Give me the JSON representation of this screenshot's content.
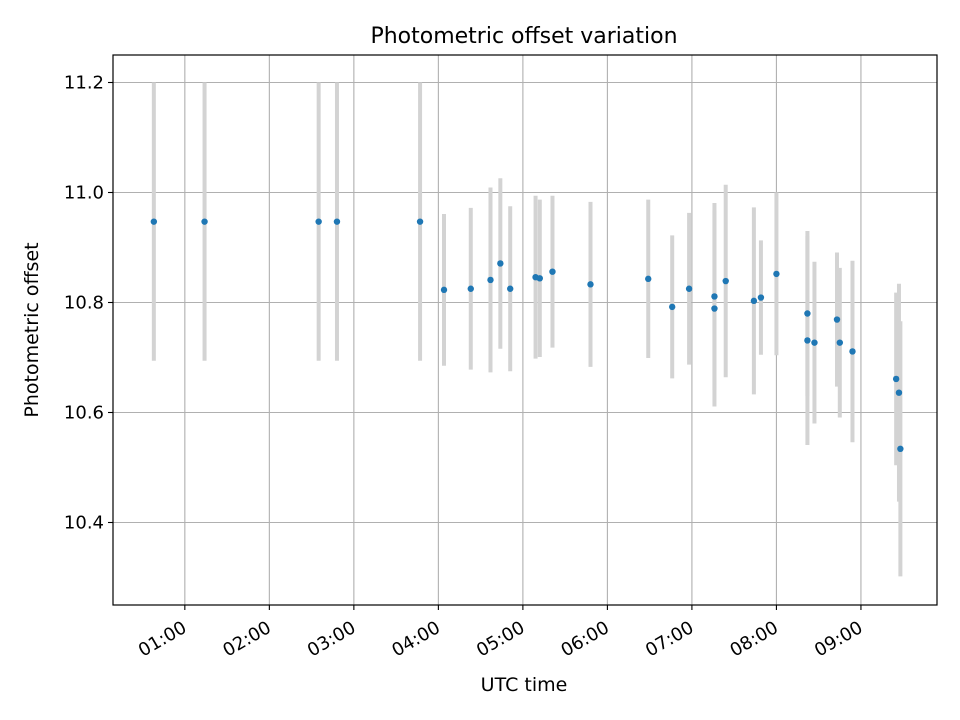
{
  "chart_data": {
    "type": "scatter",
    "title": "Photometric offset variation",
    "xlabel": "UTC time",
    "ylabel": "Photometric offset",
    "x_tick_labels": [
      "01:00",
      "02:00",
      "03:00",
      "04:00",
      "05:00",
      "06:00",
      "07:00",
      "08:00",
      "09:00"
    ],
    "y_tick_labels": [
      "10.4",
      "10.6",
      "10.8",
      "11.0",
      "11.2"
    ],
    "x_ticks": [
      "01:00",
      "02:00",
      "03:00",
      "04:00",
      "05:00",
      "06:00",
      "07:00",
      "08:00",
      "09:00"
    ],
    "y_ticks": [
      10.4,
      10.6,
      10.8,
      11.0,
      11.2
    ],
    "xlim": [
      "00:09",
      "09:54"
    ],
    "ylim": [
      10.25,
      11.25
    ],
    "grid": true,
    "colors": {
      "point": "#1f77b4",
      "errorbar": "#d3d3d3",
      "grid": "#b0b0b0"
    },
    "points": [
      {
        "x": "00:38",
        "y": 10.947,
        "err": 0.253
      },
      {
        "x": "01:14",
        "y": 10.947,
        "err": 0.253
      },
      {
        "x": "02:35",
        "y": 10.947,
        "err": 0.253
      },
      {
        "x": "02:48",
        "y": 10.947,
        "err": 0.253
      },
      {
        "x": "03:47",
        "y": 10.947,
        "err": 0.253
      },
      {
        "x": "04:04",
        "y": 10.823,
        "err": 0.138
      },
      {
        "x": "04:23",
        "y": 10.825,
        "err": 0.147
      },
      {
        "x": "04:37",
        "y": 10.841,
        "err": 0.168
      },
      {
        "x": "04:44",
        "y": 10.871,
        "err": 0.155
      },
      {
        "x": "04:51",
        "y": 10.825,
        "err": 0.15
      },
      {
        "x": "05:09",
        "y": 10.846,
        "err": 0.148
      },
      {
        "x": "05:12",
        "y": 10.844,
        "err": 0.143
      },
      {
        "x": "05:21",
        "y": 10.856,
        "err": 0.138
      },
      {
        "x": "05:48",
        "y": 10.833,
        "err": 0.15
      },
      {
        "x": "06:29",
        "y": 10.843,
        "err": 0.144
      },
      {
        "x": "06:46",
        "y": 10.792,
        "err": 0.13
      },
      {
        "x": "06:58",
        "y": 10.825,
        "err": 0.138
      },
      {
        "x": "07:16",
        "y": 10.789,
        "err": 0.178
      },
      {
        "x": "07:16",
        "y": 10.811,
        "err": 0.17
      },
      {
        "x": "07:24",
        "y": 10.839,
        "err": 0.175
      },
      {
        "x": "07:44",
        "y": 10.803,
        "err": 0.17
      },
      {
        "x": "07:49",
        "y": 10.809,
        "err": 0.104
      },
      {
        "x": "08:00",
        "y": 10.852,
        "err": 0.148
      },
      {
        "x": "08:22",
        "y": 10.731,
        "err": 0.19
      },
      {
        "x": "08:22",
        "y": 10.78,
        "err": 0.15
      },
      {
        "x": "08:27",
        "y": 10.727,
        "err": 0.147
      },
      {
        "x": "08:43",
        "y": 10.769,
        "err": 0.122
      },
      {
        "x": "08:45",
        "y": 10.727,
        "err": 0.136
      },
      {
        "x": "08:54",
        "y": 10.711,
        "err": 0.165
      },
      {
        "x": "09:25",
        "y": 10.661,
        "err": 0.157
      },
      {
        "x": "09:27",
        "y": 10.636,
        "err": 0.198
      },
      {
        "x": "09:28",
        "y": 10.534,
        "err": 0.232
      }
    ]
  }
}
